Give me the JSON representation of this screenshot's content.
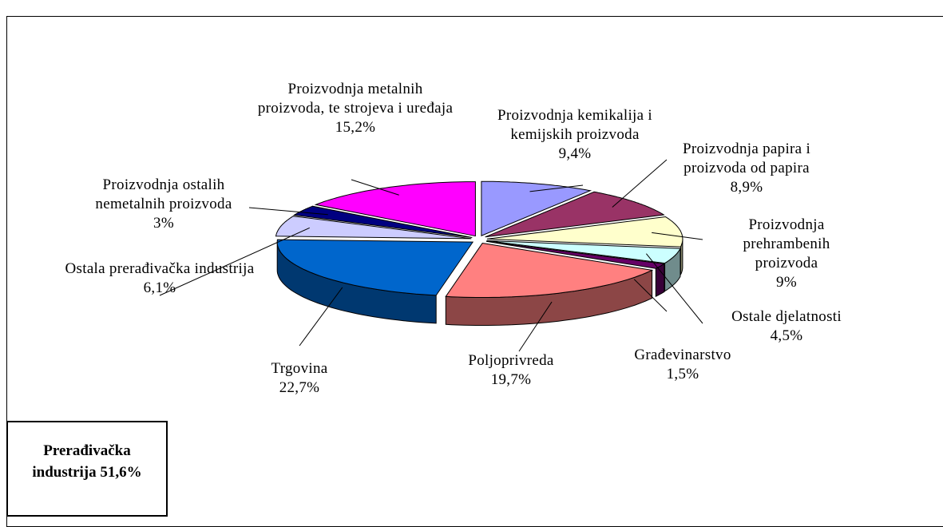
{
  "chart_data": {
    "type": "pie3d",
    "categories": [
      "Proizvodnja kemikalija i kemijskih proizvoda",
      "Proizvodnja papira i proizvoda od papira",
      "Proizvodnja prehrambenih proizvoda",
      "Ostale djelatnosti",
      "Građevinarstvo",
      "Poljoprivreda",
      "Trgovina",
      "Ostala prerađivačka industrija",
      "Proizvodnja ostalih nemetalnih proizvoda",
      "Proizvodnja metalnih proizvoda, te strojeva i uređaja"
    ],
    "values": [
      9.4,
      8.9,
      9,
      4.5,
      1.5,
      19.7,
      22.7,
      6.1,
      3,
      15.2
    ],
    "value_labels": [
      "9,4%",
      "8,9%",
      "9%",
      "4,5%",
      "1,5%",
      "19,7%",
      "22,7%",
      "6,1%",
      "3%",
      "15,2%"
    ],
    "colors": [
      "#9999ff",
      "#993366",
      "#ffffcc",
      "#ccffff",
      "#660066",
      "#ff8080",
      "#0066cc",
      "#ccccff",
      "#000080",
      "#ff00ff"
    ],
    "annotation": "Prerađivačka industrija 51,6%"
  }
}
